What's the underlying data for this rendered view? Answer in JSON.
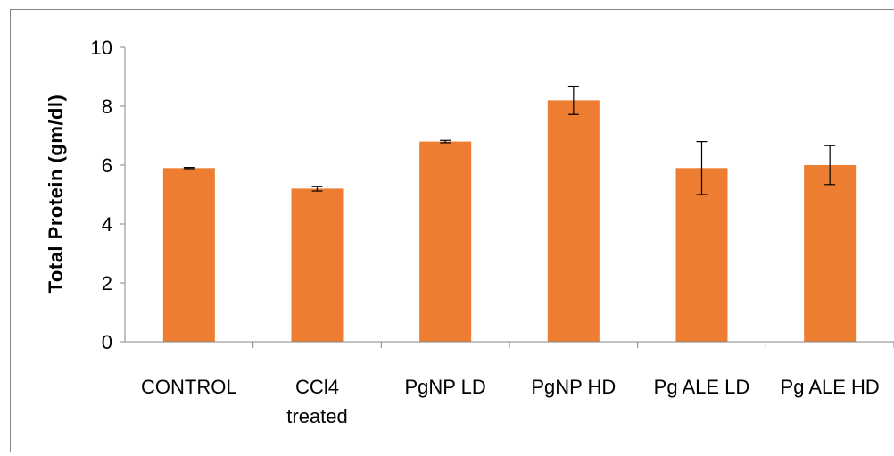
{
  "chart_data": {
    "type": "bar",
    "title": "",
    "xlabel": "",
    "ylabel": "Total Protein (gm/dl)",
    "categories": [
      [
        "CONTROL"
      ],
      [
        "CCl4",
        "treated"
      ],
      [
        "PgNP LD"
      ],
      [
        "PgNP HD"
      ],
      [
        "Pg ALE LD"
      ],
      [
        "Pg ALE HD"
      ]
    ],
    "values": [
      5.9,
      5.2,
      6.8,
      8.2,
      5.9,
      6.0
    ],
    "errors": [
      0.02,
      0.08,
      0.04,
      0.48,
      0.9,
      0.66
    ],
    "ylim": [
      0,
      10
    ],
    "yticks": [
      "0",
      "2",
      "4",
      "6",
      "8",
      "10"
    ],
    "grid": false,
    "legend": "none",
    "colors": {
      "bar": "#ed7d31",
      "axis": "#868686",
      "error_bar": "#000000",
      "frame": "#868686"
    }
  }
}
